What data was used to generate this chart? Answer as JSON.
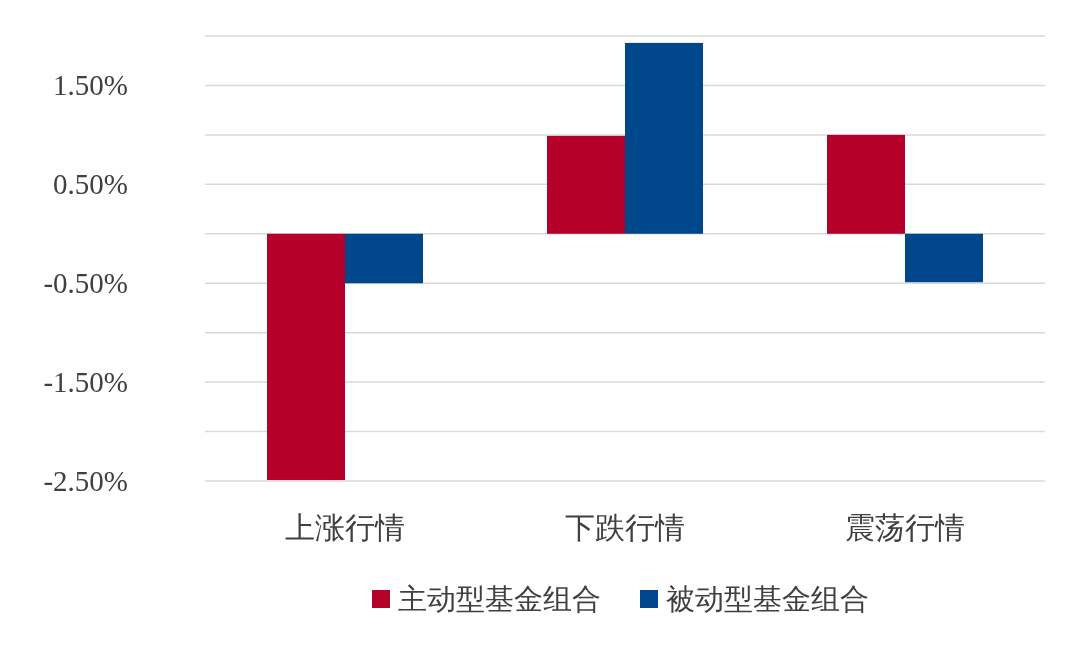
{
  "chart_data": {
    "type": "bar",
    "categories": [
      "上涨行情",
      "下跌行情",
      "震荡行情"
    ],
    "series": [
      {
        "name": "主动型基金组合",
        "color": "#b5002a",
        "values": [
          -2.49,
          0.99,
          1.0
        ]
      },
      {
        "name": "被动型基金组合",
        "color": "#00468b",
        "values": [
          -0.5,
          1.93,
          -0.49
        ]
      }
    ],
    "ylim": [
      -2.5,
      2.0
    ],
    "yticks": [
      {
        "value": 2.0,
        "label": null
      },
      {
        "value": 1.5,
        "label": "1.50%"
      },
      {
        "value": 1.0,
        "label": null
      },
      {
        "value": 0.5,
        "label": "0.50%"
      },
      {
        "value": 0,
        "label": null
      },
      {
        "value": -0.5,
        "label": "-0.50%"
      },
      {
        "value": -1.0,
        "label": null
      },
      {
        "value": -1.5,
        "label": "-1.50%"
      },
      {
        "value": -2.0,
        "label": null
      },
      {
        "value": -2.5,
        "label": "-2.50%"
      }
    ],
    "grid": "y",
    "legend": "bottom"
  }
}
